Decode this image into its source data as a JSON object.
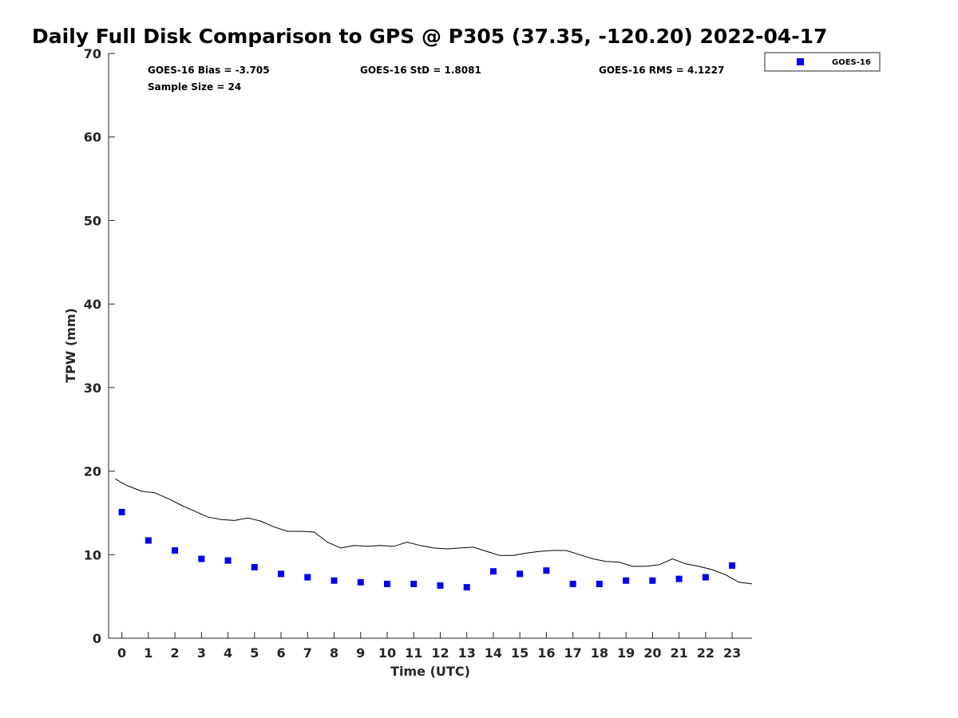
{
  "chart_data": {
    "type": "scatter",
    "title": "Daily Full Disk Comparison to GPS @ P305 (37.35, -120.20) 2022-04-17",
    "xlabel": "Time (UTC)",
    "ylabel": "TPW (mm)",
    "xlim": [
      -0.5,
      23.75
    ],
    "ylim": [
      0,
      70
    ],
    "xticks": [
      0,
      1,
      2,
      3,
      4,
      5,
      6,
      7,
      8,
      9,
      10,
      11,
      12,
      13,
      14,
      15,
      16,
      17,
      18,
      19,
      20,
      21,
      22,
      23
    ],
    "yticks": [
      0,
      10,
      20,
      30,
      40,
      50,
      60,
      70
    ],
    "grid": false,
    "legend_position": "top-right, outside plot area",
    "stats": {
      "bias": "GOES-16 Bias = -3.705",
      "std": "GOES-16 StD = 1.8081",
      "rms": "GOES-16 RMS = 4.1227",
      "sample": "Sample Size = 24"
    },
    "series": [
      {
        "name": "GOES-16",
        "kind": "markers",
        "marker": "square",
        "color": "#0000ee",
        "x": [
          0,
          1,
          2,
          3,
          4,
          5,
          6,
          7,
          8,
          9,
          10,
          11,
          12,
          13,
          14,
          15,
          16,
          17,
          18,
          19,
          20,
          21,
          22,
          23
        ],
        "y": [
          15.1,
          11.7,
          10.5,
          9.5,
          9.3,
          8.5,
          7.7,
          7.3,
          6.9,
          6.7,
          6.5,
          6.5,
          6.3,
          6.1,
          8.0,
          7.7,
          8.1,
          6.5,
          6.5,
          6.9,
          6.9,
          7.1,
          7.3,
          8.7
        ]
      },
      {
        "kind": "line",
        "color": "#000000",
        "x": [
          -0.25,
          0.0,
          0.25,
          0.75,
          1.25,
          1.75,
          2.25,
          2.75,
          3.25,
          3.75,
          4.25,
          4.75,
          5.25,
          5.75,
          6.25,
          6.75,
          7.25,
          7.75,
          8.25,
          8.75,
          9.25,
          9.75,
          10.25,
          10.75,
          11.25,
          11.75,
          12.25,
          12.75,
          13.25,
          13.75,
          14.25,
          14.75,
          15.25,
          15.75,
          16.25,
          16.75,
          17.25,
          17.75,
          18.25,
          18.75,
          19.25,
          19.75,
          20.25,
          20.75,
          21.25,
          21.75,
          22.25,
          22.75,
          23.25,
          23.75
        ],
        "y": [
          19.1,
          18.6,
          18.2,
          17.6,
          17.4,
          16.7,
          15.9,
          15.2,
          14.5,
          14.2,
          14.1,
          14.4,
          14.0,
          13.3,
          12.8,
          12.8,
          12.7,
          11.5,
          10.8,
          11.1,
          11.0,
          11.1,
          11.0,
          11.5,
          11.1,
          10.8,
          10.7,
          10.8,
          10.9,
          10.4,
          9.9,
          9.9,
          10.2,
          10.4,
          10.5,
          10.5,
          10.0,
          9.5,
          9.2,
          9.1,
          8.6,
          8.6,
          8.8,
          9.5,
          8.9,
          8.6,
          8.2,
          7.6,
          6.7,
          6.5
        ]
      }
    ]
  }
}
